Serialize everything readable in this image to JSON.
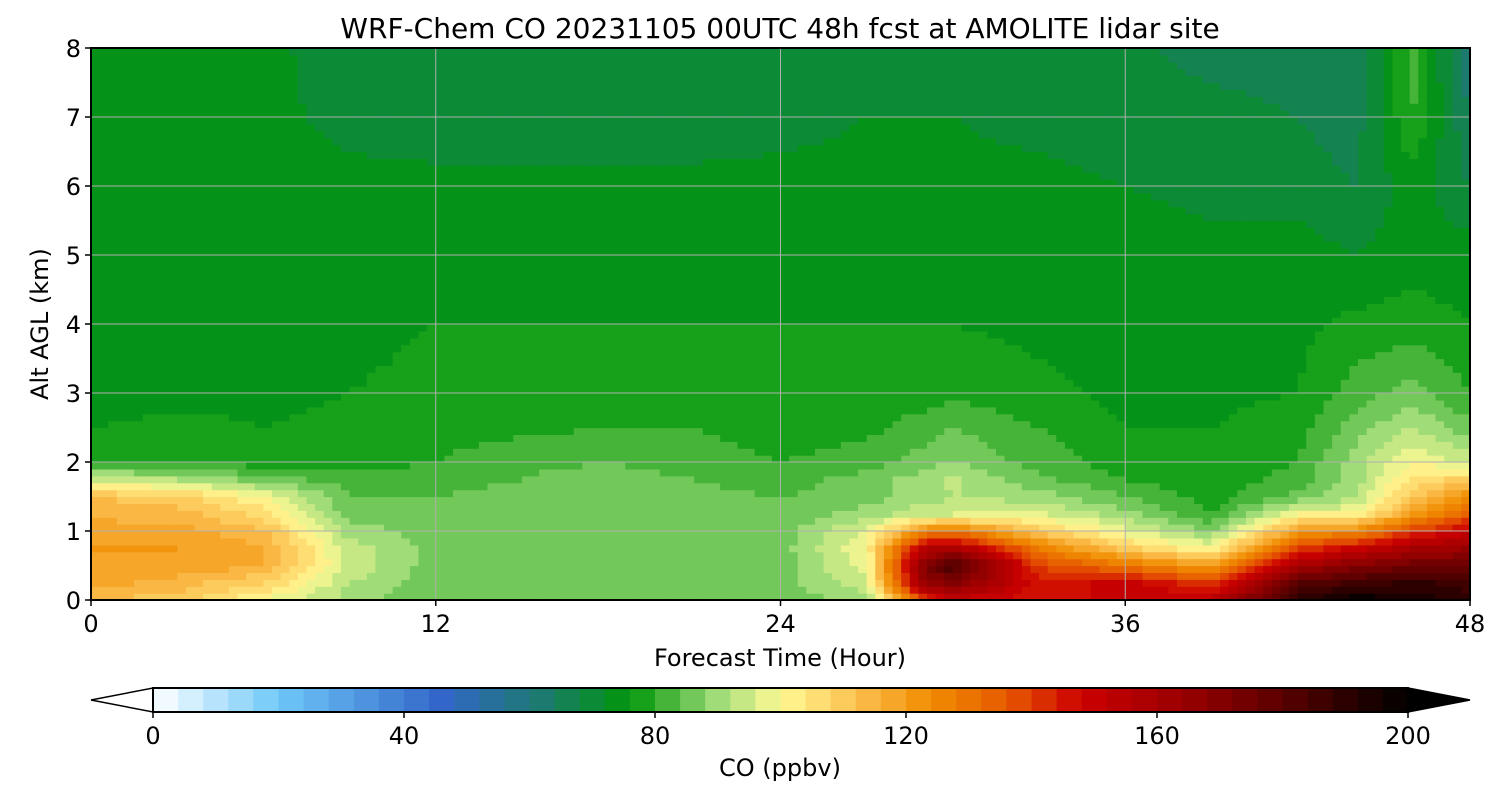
{
  "chart_data": {
    "type": "heatmap",
    "title": "WRF-Chem CO  20231105 00UTC 48h fcst at AMOLITE lidar site",
    "xlabel": "Forecast Time (Hour)",
    "ylabel": "Alt AGL (km)",
    "xlim": [
      0,
      48
    ],
    "ylim": [
      0,
      8
    ],
    "xticks": [
      0,
      12,
      24,
      36,
      48
    ],
    "xtick_labels": [
      "0",
      "12",
      "24",
      "36",
      "48"
    ],
    "yticks": [
      0,
      1,
      2,
      3,
      4,
      5,
      6,
      7,
      8
    ],
    "ytick_labels": [
      "0",
      "1",
      "2",
      "3",
      "4",
      "5",
      "6",
      "7",
      "8"
    ],
    "grid": true,
    "x": [
      0,
      3,
      6,
      9,
      12,
      15,
      18,
      21,
      24,
      27,
      29,
      30,
      33,
      36,
      39,
      42,
      44,
      46,
      48
    ],
    "y": [
      0,
      0.25,
      0.5,
      0.75,
      1.0,
      1.25,
      1.5,
      1.75,
      2.0,
      2.5,
      3.0,
      4.0,
      5.0,
      6.0,
      7.0,
      8.0
    ],
    "z": [
      [
        112,
        110,
        100,
        90,
        84,
        84,
        84,
        85,
        85,
        90,
        140,
        150,
        145,
        150,
        155,
        190,
        200,
        195,
        190
      ],
      [
        118,
        114,
        108,
        92,
        85,
        86,
        86,
        86,
        86,
        95,
        165,
        170,
        145,
        150,
        140,
        180,
        185,
        190,
        185
      ],
      [
        120,
        119,
        116,
        95,
        86,
        87,
        87,
        87,
        86,
        98,
        170,
        185,
        140,
        130,
        120,
        160,
        170,
        175,
        175
      ],
      [
        120,
        120,
        117,
        94,
        86,
        87,
        87,
        87,
        86,
        100,
        155,
        160,
        128,
        110,
        100,
        140,
        150,
        160,
        165
      ],
      [
        118,
        118,
        113,
        90,
        86,
        87,
        87,
        87,
        86,
        97,
        125,
        130,
        110,
        98,
        88,
        120,
        125,
        140,
        150
      ],
      [
        115,
        114,
        106,
        86,
        85,
        86,
        87,
        86,
        85,
        90,
        95,
        96,
        97,
        90,
        80,
        100,
        100,
        120,
        135
      ],
      [
        112,
        110,
        100,
        84,
        84,
        86,
        88,
        85,
        84,
        86,
        90,
        92,
        90,
        84,
        78,
        85,
        92,
        110,
        125
      ],
      [
        95,
        92,
        86,
        82,
        82,
        84,
        86,
        84,
        82,
        86,
        90,
        93,
        85,
        80,
        77,
        82,
        90,
        105,
        110
      ],
      [
        80,
        79,
        78,
        78,
        80,
        83,
        84,
        82,
        80,
        82,
        86,
        88,
        82,
        78,
        77,
        80,
        90,
        100,
        95
      ],
      [
        76,
        77,
        76,
        77,
        78,
        79,
        80,
        80,
        78,
        79,
        82,
        84,
        80,
        76,
        76,
        78,
        86,
        92,
        85
      ],
      [
        74,
        75,
        75,
        76,
        77,
        78,
        78,
        78,
        77,
        77,
        78,
        79,
        77,
        75,
        75,
        76,
        82,
        86,
        80
      ],
      [
        73,
        74,
        74,
        75,
        76,
        76,
        76,
        76,
        76,
        76,
        76,
        76,
        75,
        74,
        74,
        75,
        77,
        78,
        76
      ],
      [
        73,
        73,
        74,
        75,
        75,
        75,
        75,
        75,
        75,
        75,
        75,
        75,
        74,
        74,
        73,
        74,
        72,
        74,
        74
      ],
      [
        74,
        73,
        73,
        73,
        73,
        73,
        73,
        73,
        73,
        73,
        73,
        73,
        73,
        72,
        71,
        70,
        68,
        74,
        68
      ],
      [
        75,
        74,
        73,
        71,
        70,
        70,
        70,
        70,
        71,
        72,
        72,
        72,
        71,
        70,
        70,
        68,
        66,
        80,
        64
      ],
      [
        75,
        74,
        73,
        70,
        70,
        70,
        69,
        69,
        70,
        71,
        71,
        71,
        70,
        69,
        66,
        65,
        64,
        82,
        60
      ]
    ],
    "colorbar": {
      "label": "CO  (ppbv)",
      "min": 0,
      "max": 200,
      "step": 4,
      "ticks": [
        0,
        40,
        80,
        120,
        160,
        200
      ],
      "tick_labels": [
        "0",
        "40",
        "80",
        "120",
        "160",
        "200"
      ],
      "extend": "both",
      "under_color": "#ffffff",
      "over_color": "#000000",
      "color_stops": [
        {
          "v": 0,
          "c": "#ffffff"
        },
        {
          "v": 20,
          "c": "#6ec8f8"
        },
        {
          "v": 46,
          "c": "#3266c8"
        },
        {
          "v": 62,
          "c": "#1c7a6e"
        },
        {
          "v": 76,
          "c": "#00960a"
        },
        {
          "v": 90,
          "c": "#a0dc78"
        },
        {
          "v": 100,
          "c": "#fffa96"
        },
        {
          "v": 112,
          "c": "#fcc050"
        },
        {
          "v": 124,
          "c": "#f08c00"
        },
        {
          "v": 136,
          "c": "#e65a00"
        },
        {
          "v": 148,
          "c": "#cc0000"
        },
        {
          "v": 164,
          "c": "#9a0000"
        },
        {
          "v": 180,
          "c": "#5a0000"
        },
        {
          "v": 200,
          "c": "#000000"
        }
      ]
    }
  }
}
